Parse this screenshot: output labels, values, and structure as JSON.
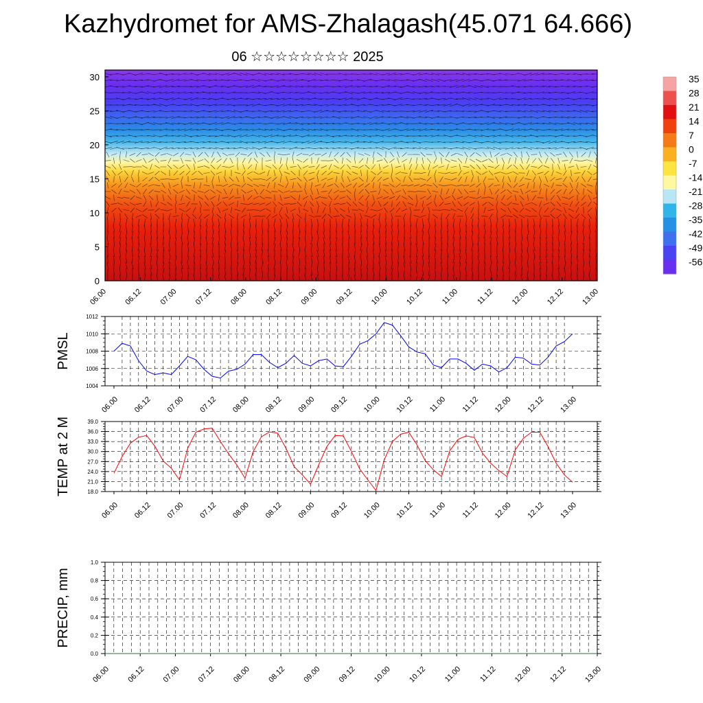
{
  "title": "Kazhydromet for AMS-Zhalagash(45.071 64.666)",
  "subtitle": "06 ☆☆☆☆☆☆☆☆ 2025",
  "time_labels": [
    "06.00",
    "06.12",
    "07.00",
    "07.12",
    "08.00",
    "08.12",
    "09.00",
    "09.12",
    "10.00",
    "10.12",
    "11.00",
    "11.12",
    "12.00",
    "12.12",
    "13.00"
  ],
  "chart_data": [
    {
      "type": "heatmap",
      "name": "cross-section",
      "y_ticks": [
        0,
        5,
        10,
        15,
        20,
        25,
        30
      ],
      "ylim": [
        0,
        31
      ],
      "colorbar_labels": [
        "35",
        "28",
        "21",
        "14",
        "7",
        "0",
        "-7",
        "-14",
        "-21",
        "-28",
        "-35",
        "-42",
        "-49",
        "-56"
      ],
      "colorbar_colors": [
        "#f5a3a3",
        "#ee5050",
        "#e01010",
        "#f04010",
        "#f57a18",
        "#fbb020",
        "#fde440",
        "#fff8a0",
        "#b8e6f4",
        "#30b4ea",
        "#2590e6",
        "#3f70ee",
        "#4b43f2",
        "#6a2ef0"
      ]
    },
    {
      "type": "line",
      "ylabel": "PMSL",
      "ylim": [
        1004,
        1012
      ],
      "y_ticks": [
        "1004",
        "1006",
        "1008",
        "1010",
        "1012"
      ],
      "color": "#0000ff",
      "values": [
        1008.0,
        1008.9,
        1008.6,
        1006.9,
        1005.7,
        1005.3,
        1005.5,
        1005.3,
        1006.3,
        1007.4,
        1007.0,
        1005.9,
        1005.1,
        1004.9,
        1005.7,
        1005.9,
        1006.5,
        1007.6,
        1007.6,
        1006.7,
        1006.1,
        1006.6,
        1007.5,
        1006.6,
        1006.3,
        1006.9,
        1007.1,
        1006.3,
        1006.2,
        1007.4,
        1008.8,
        1009.2,
        1010.0,
        1011.3,
        1011.0,
        1009.8,
        1008.5,
        1007.9,
        1007.7,
        1006.4,
        1006.1,
        1007.1,
        1007.1,
        1006.6,
        1005.8,
        1006.5,
        1006.3,
        1005.6,
        1006.1,
        1007.3,
        1007.2,
        1006.5,
        1006.4,
        1007.3,
        1008.6,
        1009.1,
        1010.0
      ]
    },
    {
      "type": "line",
      "ylabel": "TEMP at 2 M",
      "ylim": [
        18,
        39
      ],
      "y_ticks": [
        "18.0",
        "21.0",
        "24.0",
        "27.0",
        "30.0",
        "33.0",
        "36.0",
        "39.0"
      ],
      "color": "#ff0000",
      "values": [
        23.5,
        28.5,
        32.5,
        34.3,
        34.8,
        31.6,
        27.2,
        25.0,
        21.5,
        31.0,
        35.8,
        36.8,
        37.0,
        33.0,
        29.3,
        26.0,
        22.0,
        30.0,
        34.4,
        35.9,
        35.5,
        31.0,
        25.5,
        23.0,
        20.2,
        26.0,
        31.5,
        34.8,
        34.7,
        30.0,
        24.8,
        21.5,
        18.3,
        27.5,
        33.0,
        35.2,
        35.8,
        32.0,
        27.3,
        24.5,
        22.5,
        30.2,
        33.6,
        34.7,
        34.2,
        29.5,
        26.5,
        24.3,
        22.5,
        30.5,
        34.0,
        35.8,
        35.8,
        31.5,
        26.5,
        23.0,
        20.8
      ]
    },
    {
      "type": "line",
      "ylabel": "PRECIP, mm",
      "ylim": [
        0,
        1
      ],
      "y_ticks": [
        "0.0",
        "0.2",
        "0.4",
        "0.6",
        "0.8",
        "1.0"
      ],
      "color": "#2e6b3a",
      "values": [
        0,
        0,
        0,
        0,
        0,
        0,
        0,
        0,
        0,
        0,
        0,
        0,
        0,
        0,
        0,
        0,
        0,
        0,
        0,
        0,
        0,
        0,
        0,
        0,
        0,
        0,
        0,
        0,
        0,
        0,
        0,
        0,
        0,
        0,
        0,
        0,
        0,
        0,
        0,
        0,
        0,
        0,
        0,
        0,
        0,
        0,
        0,
        0,
        0,
        0,
        0,
        0,
        0,
        0,
        0,
        0,
        0
      ]
    }
  ]
}
